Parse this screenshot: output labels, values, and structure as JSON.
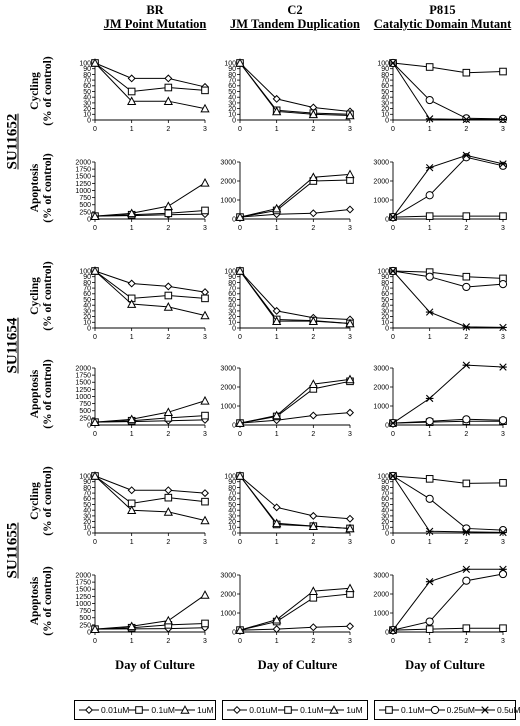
{
  "columns": [
    {
      "title": "BR",
      "subtitle": "JM Point Mutation"
    },
    {
      "title": "C2",
      "subtitle": "JM Tandem Duplication"
    },
    {
      "title": "P815",
      "subtitle": "Catalytic Domain Mutant"
    }
  ],
  "drugs": [
    "SU11652",
    "SU11654",
    "SU11655"
  ],
  "ylabels": {
    "cycling": [
      "Cycling",
      "(% of control)"
    ],
    "apoptosis": [
      "Apoptosis",
      "(% of control)"
    ]
  },
  "xlabel": "Day of Culture",
  "legends": [
    [
      {
        "marker": "diamond",
        "label": "0.01uM"
      },
      {
        "marker": "square",
        "label": "0.1uM"
      },
      {
        "marker": "triangle",
        "label": "1uM"
      }
    ],
    [
      {
        "marker": "diamond",
        "label": "0.01uM"
      },
      {
        "marker": "square",
        "label": "0.1uM"
      },
      {
        "marker": "triangle",
        "label": "1uM"
      }
    ],
    [
      {
        "marker": "square",
        "label": "0.1uM"
      },
      {
        "marker": "circle",
        "label": "0.25uM"
      },
      {
        "marker": "star",
        "label": "0.5uM"
      }
    ]
  ],
  "chart_data": [
    {
      "type": "line",
      "drug": "SU11652",
      "cell": "BR",
      "measure": "Cycling",
      "x": [
        0,
        1,
        2,
        3
      ],
      "ylim": [
        0,
        100
      ],
      "yticks": [
        0,
        10,
        20,
        30,
        40,
        50,
        60,
        70,
        80,
        90,
        100
      ],
      "series": [
        {
          "marker": "diamond",
          "values": [
            100,
            73,
            73,
            58
          ]
        },
        {
          "marker": "square",
          "values": [
            100,
            50,
            57,
            52
          ]
        },
        {
          "marker": "triangle",
          "values": [
            100,
            33,
            33,
            20
          ]
        }
      ]
    },
    {
      "type": "line",
      "drug": "SU11652",
      "cell": "C2",
      "measure": "Cycling",
      "x": [
        0,
        1,
        2,
        3
      ],
      "ylim": [
        0,
        100
      ],
      "yticks": [
        0,
        10,
        20,
        30,
        40,
        50,
        60,
        70,
        80,
        90,
        100
      ],
      "series": [
        {
          "marker": "diamond",
          "values": [
            100,
            37,
            22,
            15
          ]
        },
        {
          "marker": "square",
          "values": [
            100,
            17,
            12,
            10
          ]
        },
        {
          "marker": "triangle",
          "values": [
            100,
            15,
            10,
            8
          ]
        }
      ]
    },
    {
      "type": "line",
      "drug": "SU11652",
      "cell": "P815",
      "measure": "Cycling",
      "x": [
        0,
        1,
        2,
        3
      ],
      "ylim": [
        0,
        100
      ],
      "yticks": [
        0,
        10,
        20,
        30,
        40,
        50,
        60,
        70,
        80,
        90,
        100
      ],
      "series": [
        {
          "marker": "square",
          "values": [
            100,
            93,
            83,
            85
          ]
        },
        {
          "marker": "circle",
          "values": [
            100,
            35,
            3,
            2
          ]
        },
        {
          "marker": "star",
          "values": [
            100,
            2,
            1,
            1
          ]
        }
      ]
    },
    {
      "type": "line",
      "drug": "SU11652",
      "cell": "BR",
      "measure": "Apoptosis",
      "x": [
        0,
        1,
        2,
        3
      ],
      "ylim": [
        0,
        2000
      ],
      "yticks": [
        0,
        250,
        500,
        750,
        1000,
        1250,
        1500,
        1750,
        2000
      ],
      "series": [
        {
          "marker": "diamond",
          "values": [
            100,
            120,
            150,
            170
          ]
        },
        {
          "marker": "square",
          "values": [
            100,
            150,
            200,
            300
          ]
        },
        {
          "marker": "triangle",
          "values": [
            100,
            200,
            450,
            1270
          ]
        }
      ]
    },
    {
      "type": "line",
      "drug": "SU11652",
      "cell": "C2",
      "measure": "Apoptosis",
      "x": [
        0,
        1,
        2,
        3
      ],
      "ylim": [
        0,
        3000
      ],
      "yticks": [
        0,
        1000,
        2000,
        3000
      ],
      "series": [
        {
          "marker": "diamond",
          "values": [
            100,
            250,
            300,
            500
          ]
        },
        {
          "marker": "square",
          "values": [
            100,
            450,
            2000,
            2050
          ]
        },
        {
          "marker": "triangle",
          "values": [
            100,
            550,
            2200,
            2350
          ]
        }
      ]
    },
    {
      "type": "line",
      "drug": "SU11652",
      "cell": "P815",
      "measure": "Apoptosis",
      "x": [
        0,
        1,
        2,
        3
      ],
      "ylim": [
        0,
        3000
      ],
      "yticks": [
        0,
        1000,
        2000,
        3000
      ],
      "series": [
        {
          "marker": "square",
          "values": [
            100,
            150,
            150,
            150
          ]
        },
        {
          "marker": "circle",
          "values": [
            100,
            1250,
            3250,
            2800
          ]
        },
        {
          "marker": "star",
          "values": [
            100,
            2700,
            3350,
            2900
          ]
        }
      ]
    },
    {
      "type": "line",
      "drug": "SU11654",
      "cell": "BR",
      "measure": "Cycling",
      "x": [
        0,
        1,
        2,
        3
      ],
      "ylim": [
        0,
        100
      ],
      "yticks": [
        0,
        10,
        20,
        30,
        40,
        50,
        60,
        70,
        80,
        90,
        100
      ],
      "series": [
        {
          "marker": "diamond",
          "values": [
            100,
            78,
            73,
            63
          ]
        },
        {
          "marker": "square",
          "values": [
            100,
            52,
            57,
            52
          ]
        },
        {
          "marker": "triangle",
          "values": [
            100,
            42,
            37,
            22
          ]
        }
      ]
    },
    {
      "type": "line",
      "drug": "SU11654",
      "cell": "C2",
      "measure": "Cycling",
      "x": [
        0,
        1,
        2,
        3
      ],
      "ylim": [
        0,
        100
      ],
      "yticks": [
        0,
        10,
        20,
        30,
        40,
        50,
        60,
        70,
        80,
        90,
        100
      ],
      "series": [
        {
          "marker": "diamond",
          "values": [
            100,
            30,
            18,
            15
          ]
        },
        {
          "marker": "square",
          "values": [
            100,
            15,
            13,
            8
          ]
        },
        {
          "marker": "triangle",
          "values": [
            100,
            12,
            12,
            8
          ]
        }
      ]
    },
    {
      "type": "line",
      "drug": "SU11654",
      "cell": "P815",
      "measure": "Cycling",
      "x": [
        0,
        1,
        2,
        3
      ],
      "ylim": [
        0,
        100
      ],
      "yticks": [
        0,
        10,
        20,
        30,
        40,
        50,
        60,
        70,
        80,
        90,
        100
      ],
      "series": [
        {
          "marker": "square",
          "values": [
            100,
            98,
            90,
            87
          ]
        },
        {
          "marker": "circle",
          "values": [
            100,
            90,
            72,
            77
          ]
        },
        {
          "marker": "star",
          "values": [
            100,
            28,
            2,
            1
          ]
        }
      ]
    },
    {
      "type": "line",
      "drug": "SU11654",
      "cell": "BR",
      "measure": "Apoptosis",
      "x": [
        0,
        1,
        2,
        3
      ],
      "ylim": [
        0,
        2000
      ],
      "yticks": [
        0,
        250,
        500,
        750,
        1000,
        1250,
        1500,
        1750,
        2000
      ],
      "series": [
        {
          "marker": "diamond",
          "values": [
            100,
            120,
            150,
            180
          ]
        },
        {
          "marker": "square",
          "values": [
            100,
            150,
            250,
            330
          ]
        },
        {
          "marker": "triangle",
          "values": [
            100,
            200,
            450,
            850
          ]
        }
      ]
    },
    {
      "type": "line",
      "drug": "SU11654",
      "cell": "C2",
      "measure": "Apoptosis",
      "x": [
        0,
        1,
        2,
        3
      ],
      "ylim": [
        0,
        3000
      ],
      "yticks": [
        0,
        1000,
        2000,
        3000
      ],
      "series": [
        {
          "marker": "diamond",
          "values": [
            100,
            250,
            500,
            650
          ]
        },
        {
          "marker": "square",
          "values": [
            100,
            450,
            1900,
            2300
          ]
        },
        {
          "marker": "triangle",
          "values": [
            100,
            500,
            2150,
            2400
          ]
        }
      ]
    },
    {
      "type": "line",
      "drug": "SU11654",
      "cell": "P815",
      "measure": "Apoptosis",
      "x": [
        0,
        1,
        2,
        3
      ],
      "ylim": [
        0,
        3000
      ],
      "yticks": [
        0,
        1000,
        2000,
        3000
      ],
      "series": [
        {
          "marker": "square",
          "values": [
            100,
            150,
            200,
            200
          ]
        },
        {
          "marker": "circle",
          "values": [
            100,
            200,
            300,
            250
          ]
        },
        {
          "marker": "star",
          "values": [
            100,
            1400,
            3150,
            3050
          ]
        }
      ]
    },
    {
      "type": "line",
      "drug": "SU11655",
      "cell": "BR",
      "measure": "Cycling",
      "x": [
        0,
        1,
        2,
        3
      ],
      "ylim": [
        0,
        100
      ],
      "yticks": [
        0,
        10,
        20,
        30,
        40,
        50,
        60,
        70,
        80,
        90,
        100
      ],
      "series": [
        {
          "marker": "diamond",
          "values": [
            100,
            75,
            75,
            70
          ]
        },
        {
          "marker": "square",
          "values": [
            100,
            52,
            62,
            55
          ]
        },
        {
          "marker": "triangle",
          "values": [
            100,
            40,
            37,
            22
          ]
        }
      ]
    },
    {
      "type": "line",
      "drug": "SU11655",
      "cell": "C2",
      "measure": "Cycling",
      "x": [
        0,
        1,
        2,
        3
      ],
      "ylim": [
        0,
        100
      ],
      "yticks": [
        0,
        10,
        20,
        30,
        40,
        50,
        60,
        70,
        80,
        90,
        100
      ],
      "series": [
        {
          "marker": "diamond",
          "values": [
            100,
            45,
            30,
            25
          ]
        },
        {
          "marker": "square",
          "values": [
            100,
            15,
            12,
            8
          ]
        },
        {
          "marker": "triangle",
          "values": [
            100,
            17,
            12,
            8
          ]
        }
      ]
    },
    {
      "type": "line",
      "drug": "SU11655",
      "cell": "P815",
      "measure": "Cycling",
      "x": [
        0,
        1,
        2,
        3
      ],
      "ylim": [
        0,
        100
      ],
      "yticks": [
        0,
        10,
        20,
        30,
        40,
        50,
        60,
        70,
        80,
        90,
        100
      ],
      "series": [
        {
          "marker": "square",
          "values": [
            100,
            95,
            87,
            88
          ]
        },
        {
          "marker": "circle",
          "values": [
            100,
            60,
            8,
            5
          ]
        },
        {
          "marker": "star",
          "values": [
            100,
            3,
            2,
            1
          ]
        }
      ]
    },
    {
      "type": "line",
      "drug": "SU11655",
      "cell": "BR",
      "measure": "Apoptosis",
      "x": [
        0,
        1,
        2,
        3
      ],
      "ylim": [
        0,
        2000
      ],
      "yticks": [
        0,
        250,
        500,
        750,
        1000,
        1250,
        1500,
        1750,
        2000
      ],
      "series": [
        {
          "marker": "diamond",
          "values": [
            100,
            110,
            120,
            150
          ]
        },
        {
          "marker": "square",
          "values": [
            100,
            150,
            250,
            300
          ]
        },
        {
          "marker": "triangle",
          "values": [
            100,
            200,
            400,
            1300
          ]
        }
      ]
    },
    {
      "type": "line",
      "drug": "SU11655",
      "cell": "C2",
      "measure": "Apoptosis",
      "x": [
        0,
        1,
        2,
        3
      ],
      "ylim": [
        0,
        3000
      ],
      "yticks": [
        0,
        1000,
        2000,
        3000
      ],
      "series": [
        {
          "marker": "diamond",
          "values": [
            100,
            150,
            250,
            300
          ]
        },
        {
          "marker": "square",
          "values": [
            100,
            550,
            1800,
            2000
          ]
        },
        {
          "marker": "triangle",
          "values": [
            100,
            650,
            2150,
            2300
          ]
        }
      ]
    },
    {
      "type": "line",
      "drug": "SU11655",
      "cell": "P815",
      "measure": "Apoptosis",
      "x": [
        0,
        1,
        2,
        3
      ],
      "ylim": [
        0,
        3000
      ],
      "yticks": [
        0,
        1000,
        2000,
        3000
      ],
      "series": [
        {
          "marker": "square",
          "values": [
            100,
            150,
            200,
            200
          ]
        },
        {
          "marker": "circle",
          "values": [
            100,
            550,
            2700,
            3050
          ]
        },
        {
          "marker": "star",
          "values": [
            100,
            2650,
            3300,
            3300
          ]
        }
      ]
    }
  ]
}
